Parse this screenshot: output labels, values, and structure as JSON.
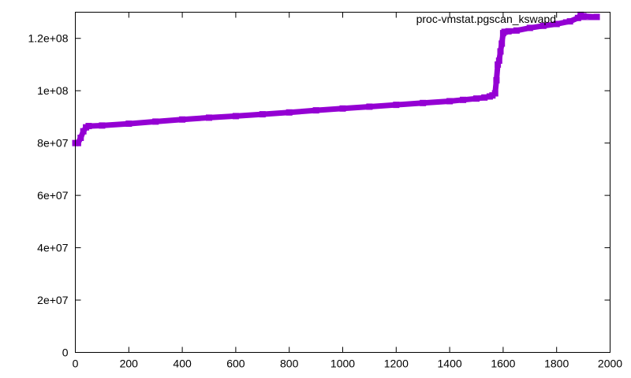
{
  "chart_data": {
    "type": "line",
    "title": "",
    "xlabel": "",
    "ylabel": "",
    "xlim": [
      0,
      2000
    ],
    "ylim": [
      0,
      130000000
    ],
    "grid": false,
    "legend_position": "top-right",
    "x_ticks": [
      0,
      200,
      400,
      600,
      800,
      1000,
      1200,
      1400,
      1600,
      1800,
      2000
    ],
    "x_tick_labels": [
      "0",
      "200",
      "400",
      "600",
      "800",
      "1000",
      "1200",
      "1400",
      "1600",
      "1800",
      "2000"
    ],
    "y_ticks": [
      0,
      20000000,
      40000000,
      60000000,
      80000000,
      100000000,
      120000000
    ],
    "y_tick_labels": [
      "0",
      "2e+07",
      "4e+07",
      "6e+07",
      "8e+07",
      "1e+08",
      "1.2e+08"
    ],
    "series": [
      {
        "name": "proc-vmstat.pgscan_kswapd",
        "color": "#9400d3",
        "style": "linespoints",
        "x": [
          0,
          10,
          20,
          30,
          40,
          50,
          100,
          200,
          300,
          400,
          500,
          600,
          700,
          800,
          900,
          1000,
          1100,
          1200,
          1300,
          1400,
          1450,
          1500,
          1530,
          1550,
          1560,
          1570,
          1575,
          1580,
          1585,
          1590,
          1595,
          1600,
          1605,
          1620,
          1650,
          1700,
          1750,
          1800,
          1850,
          1880,
          1890,
          1900,
          1950
        ],
        "y": [
          80000000,
          80000000,
          82000000,
          84500000,
          86000000,
          86500000,
          86700000,
          87400000,
          88200000,
          89000000,
          89700000,
          90300000,
          91000000,
          91700000,
          92500000,
          93200000,
          93900000,
          94600000,
          95300000,
          96000000,
          96500000,
          97000000,
          97400000,
          97800000,
          98200000,
          99000000,
          104000000,
          110000000,
          111500000,
          115000000,
          118000000,
          122000000,
          122500000,
          122700000,
          123000000,
          124000000,
          124800000,
          125500000,
          126500000,
          127800000,
          129000000,
          128500000,
          128200000
        ]
      }
    ]
  }
}
